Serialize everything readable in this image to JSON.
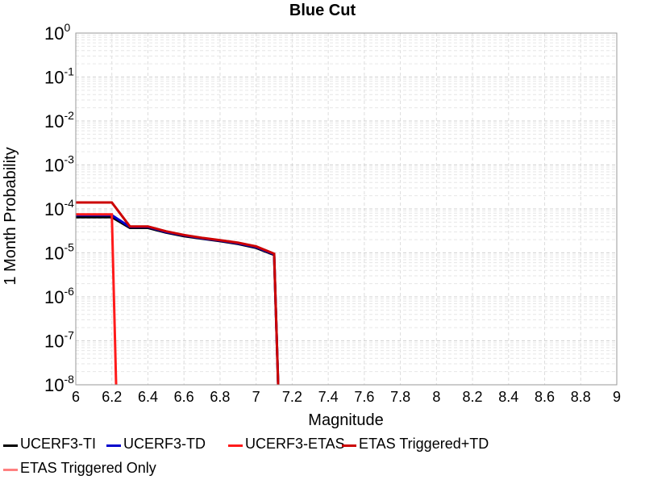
{
  "chart_data": {
    "type": "line",
    "title": "Blue Cut",
    "xlabel": "Magnitude",
    "ylabel": "1 Month Probability",
    "xlim": [
      6,
      9
    ],
    "ylim": [
      1e-08,
      1
    ],
    "yscale": "log",
    "grid": true,
    "legend_placement": "bottom",
    "x_ticks": [
      "6",
      "6.2",
      "6.4",
      "6.6",
      "6.8",
      "7",
      "7.2",
      "7.4",
      "7.6",
      "7.8",
      "8",
      "8.2",
      "8.4",
      "8.6",
      "8.8",
      "9"
    ],
    "y_ticks": [
      {
        "base": "10",
        "exp": "0",
        "value": 1
      },
      {
        "base": "10",
        "exp": "-1",
        "value": 0.1
      },
      {
        "base": "10",
        "exp": "-2",
        "value": 0.01
      },
      {
        "base": "10",
        "exp": "-3",
        "value": 0.001
      },
      {
        "base": "10",
        "exp": "-4",
        "value": 0.0001
      },
      {
        "base": "10",
        "exp": "-5",
        "value": 1e-05
      },
      {
        "base": "10",
        "exp": "-6",
        "value": 1e-06
      },
      {
        "base": "10",
        "exp": "-7",
        "value": 1e-07
      },
      {
        "base": "10",
        "exp": "-8",
        "value": 1e-08
      }
    ],
    "series": [
      {
        "name": "UCERF3-TI",
        "color": "#000000",
        "x": [
          6.0,
          6.2,
          6.3,
          6.4,
          6.5,
          6.6,
          6.7,
          6.8,
          6.9,
          7.0,
          7.1,
          7.13
        ],
        "y": [
          6.5e-05,
          6.5e-05,
          3.7e-05,
          3.7e-05,
          2.9e-05,
          2.4e-05,
          2.1e-05,
          1.85e-05,
          1.6e-05,
          1.3e-05,
          9e-06,
          1e-09
        ]
      },
      {
        "name": "UCERF3-TD",
        "color": "#0000cc",
        "x": [
          6.0,
          6.2,
          6.3,
          6.4,
          6.5,
          6.6,
          6.7,
          6.8,
          6.9,
          7.0,
          7.1,
          7.13
        ],
        "y": [
          7.2e-05,
          7.2e-05,
          3.9e-05,
          3.9e-05,
          3e-05,
          2.5e-05,
          2.15e-05,
          1.9e-05,
          1.65e-05,
          1.35e-05,
          9.3e-06,
          1e-09
        ]
      },
      {
        "name": "UCERF3-ETAS",
        "color": "#ff1a1a",
        "x": [
          6.0,
          6.2,
          6.23
        ],
        "y": [
          7.5e-05,
          7.5e-05,
          1e-09
        ]
      },
      {
        "name": "ETAS Triggered+TD",
        "color": "#cc0000",
        "x": [
          6.0,
          6.2,
          6.3,
          6.4,
          6.5,
          6.6,
          6.7,
          6.8,
          6.9,
          7.0,
          7.1,
          7.13
        ],
        "y": [
          0.00014,
          0.00014,
          4e-05,
          4e-05,
          3.1e-05,
          2.55e-05,
          2.2e-05,
          1.95e-05,
          1.7e-05,
          1.4e-05,
          9.6e-06,
          1e-09
        ]
      },
      {
        "name": "ETAS Triggered Only",
        "color": "#ff8080",
        "x": [],
        "y": []
      }
    ]
  }
}
